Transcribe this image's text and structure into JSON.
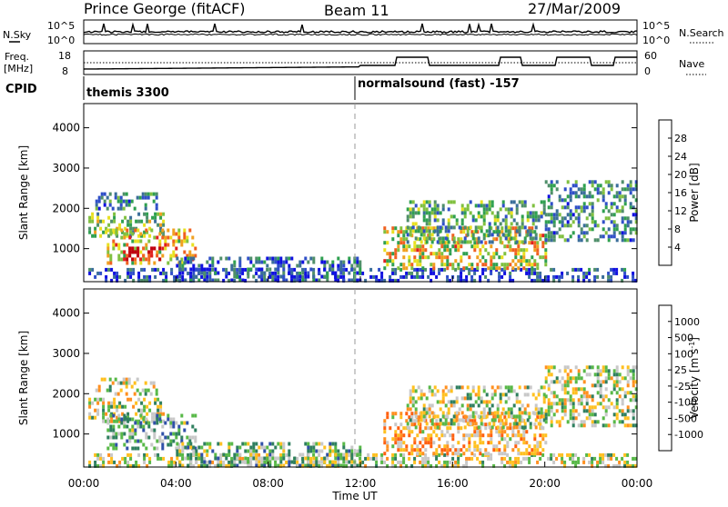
{
  "header": {
    "station": "Prince George (fitACF)",
    "beam": "Beam 11",
    "date": "27/Mar/2009"
  },
  "noise_panel": {
    "left_label": "N.Sky",
    "right_label": "N.Search",
    "left_ticks": [
      "10^5",
      "10^0"
    ],
    "right_ticks": [
      "10^5",
      "10^0"
    ]
  },
  "freq_panel": {
    "left_label_1": "Freq.",
    "left_label_2": "[MHz]",
    "right_label": "Nave",
    "left_ticks": [
      "18",
      "8"
    ],
    "right_ticks": [
      "60",
      "0"
    ]
  },
  "cpid_panel": {
    "label": "CPID",
    "segments": [
      {
        "text": "themis 3300",
        "start_hour": 0
      },
      {
        "text": "normalsound (fast) -157",
        "start_hour": 12
      }
    ]
  },
  "chart_data": [
    {
      "type": "heatmap",
      "panel": "power",
      "ylabel": "Slant Range [km]",
      "xlabel": "",
      "x_range_hours": [
        0,
        24
      ],
      "ylim": [
        180,
        4600
      ],
      "y_ticks": [
        1000,
        2000,
        3000,
        4000
      ],
      "x_ticks": [
        "00:00",
        "04:00",
        "08:00",
        "12:00",
        "16:00",
        "20:00",
        "00:00"
      ],
      "colorbar": {
        "label": "Power [dB]",
        "ticks": [
          "4",
          "8",
          "12",
          "16",
          "20",
          "24",
          "28"
        ],
        "colors": [
          "#1010e0",
          "#2f4fc8",
          "#3a6e9a",
          "#4f8f6a",
          "#2fa050",
          "#80c040",
          "#e8e020",
          "#f0a020",
          "#f06020",
          "#e02020",
          "#c00010"
        ]
      },
      "echo_regions": [
        {
          "t0": 0.2,
          "t1": 24.0,
          "r0": 200,
          "r1": 520,
          "level": 0.15
        },
        {
          "t0": 0.2,
          "t1": 3.4,
          "r0": 1350,
          "r1": 1900,
          "level": 0.45
        },
        {
          "t0": 1.0,
          "t1": 4.8,
          "r0": 650,
          "r1": 1500,
          "level": 0.65
        },
        {
          "t0": 1.7,
          "t1": 3.4,
          "r0": 720,
          "r1": 1050,
          "level": 0.95
        },
        {
          "t0": 0.5,
          "t1": 3.2,
          "r0": 2000,
          "r1": 2400,
          "level": 0.3
        },
        {
          "t0": 4.0,
          "t1": 12.0,
          "r0": 250,
          "r1": 800,
          "level": 0.2
        },
        {
          "t0": 13.0,
          "t1": 20.0,
          "r0": 550,
          "r1": 1550,
          "level": 0.6
        },
        {
          "t0": 14.0,
          "t1": 20.0,
          "r0": 1200,
          "r1": 2200,
          "level": 0.35
        },
        {
          "t0": 20.0,
          "t1": 24.0,
          "r0": 1200,
          "r1": 2700,
          "level": 0.3
        }
      ]
    },
    {
      "type": "heatmap",
      "panel": "velocity",
      "ylabel": "Slant Range [km]",
      "xlabel": "Time UT",
      "x_range_hours": [
        0,
        24
      ],
      "ylim": [
        180,
        4600
      ],
      "y_ticks": [
        1000,
        2000,
        3000,
        4000
      ],
      "x_ticks": [
        "00:00",
        "04:00",
        "08:00",
        "12:00",
        "16:00",
        "20:00",
        "00:00"
      ],
      "colorbar": {
        "label": "Velocity [m s-1]",
        "ticks": [
          "1000",
          "500",
          "100",
          "25",
          "-25",
          "-100",
          "-500",
          "-1000"
        ],
        "colors": [
          "#1010d0",
          "#3050a8",
          "#2f7f5f",
          "#58b848",
          "#c8c8c8",
          "#ffc020",
          "#ff9020",
          "#ff6010",
          "#e01010"
        ]
      },
      "echo_regions": [
        {
          "t0": 0.2,
          "t1": 24.0,
          "r0": 200,
          "r1": 520,
          "level": 0.5
        },
        {
          "t0": 0.2,
          "t1": 3.4,
          "r0": 1350,
          "r1": 1900,
          "level": 0.5
        },
        {
          "t0": 1.0,
          "t1": 4.8,
          "r0": 650,
          "r1": 1500,
          "level": 0.35
        },
        {
          "t0": 0.5,
          "t1": 3.2,
          "r0": 2000,
          "r1": 2400,
          "level": 0.5
        },
        {
          "t0": 4.0,
          "t1": 12.0,
          "r0": 250,
          "r1": 800,
          "level": 0.4
        },
        {
          "t0": 13.0,
          "t1": 20.0,
          "r0": 550,
          "r1": 1550,
          "level": 0.65
        },
        {
          "t0": 14.0,
          "t1": 20.0,
          "r0": 1200,
          "r1": 2200,
          "level": 0.5
        },
        {
          "t0": 20.0,
          "t1": 24.0,
          "r0": 1200,
          "r1": 2700,
          "level": 0.5
        }
      ]
    }
  ]
}
